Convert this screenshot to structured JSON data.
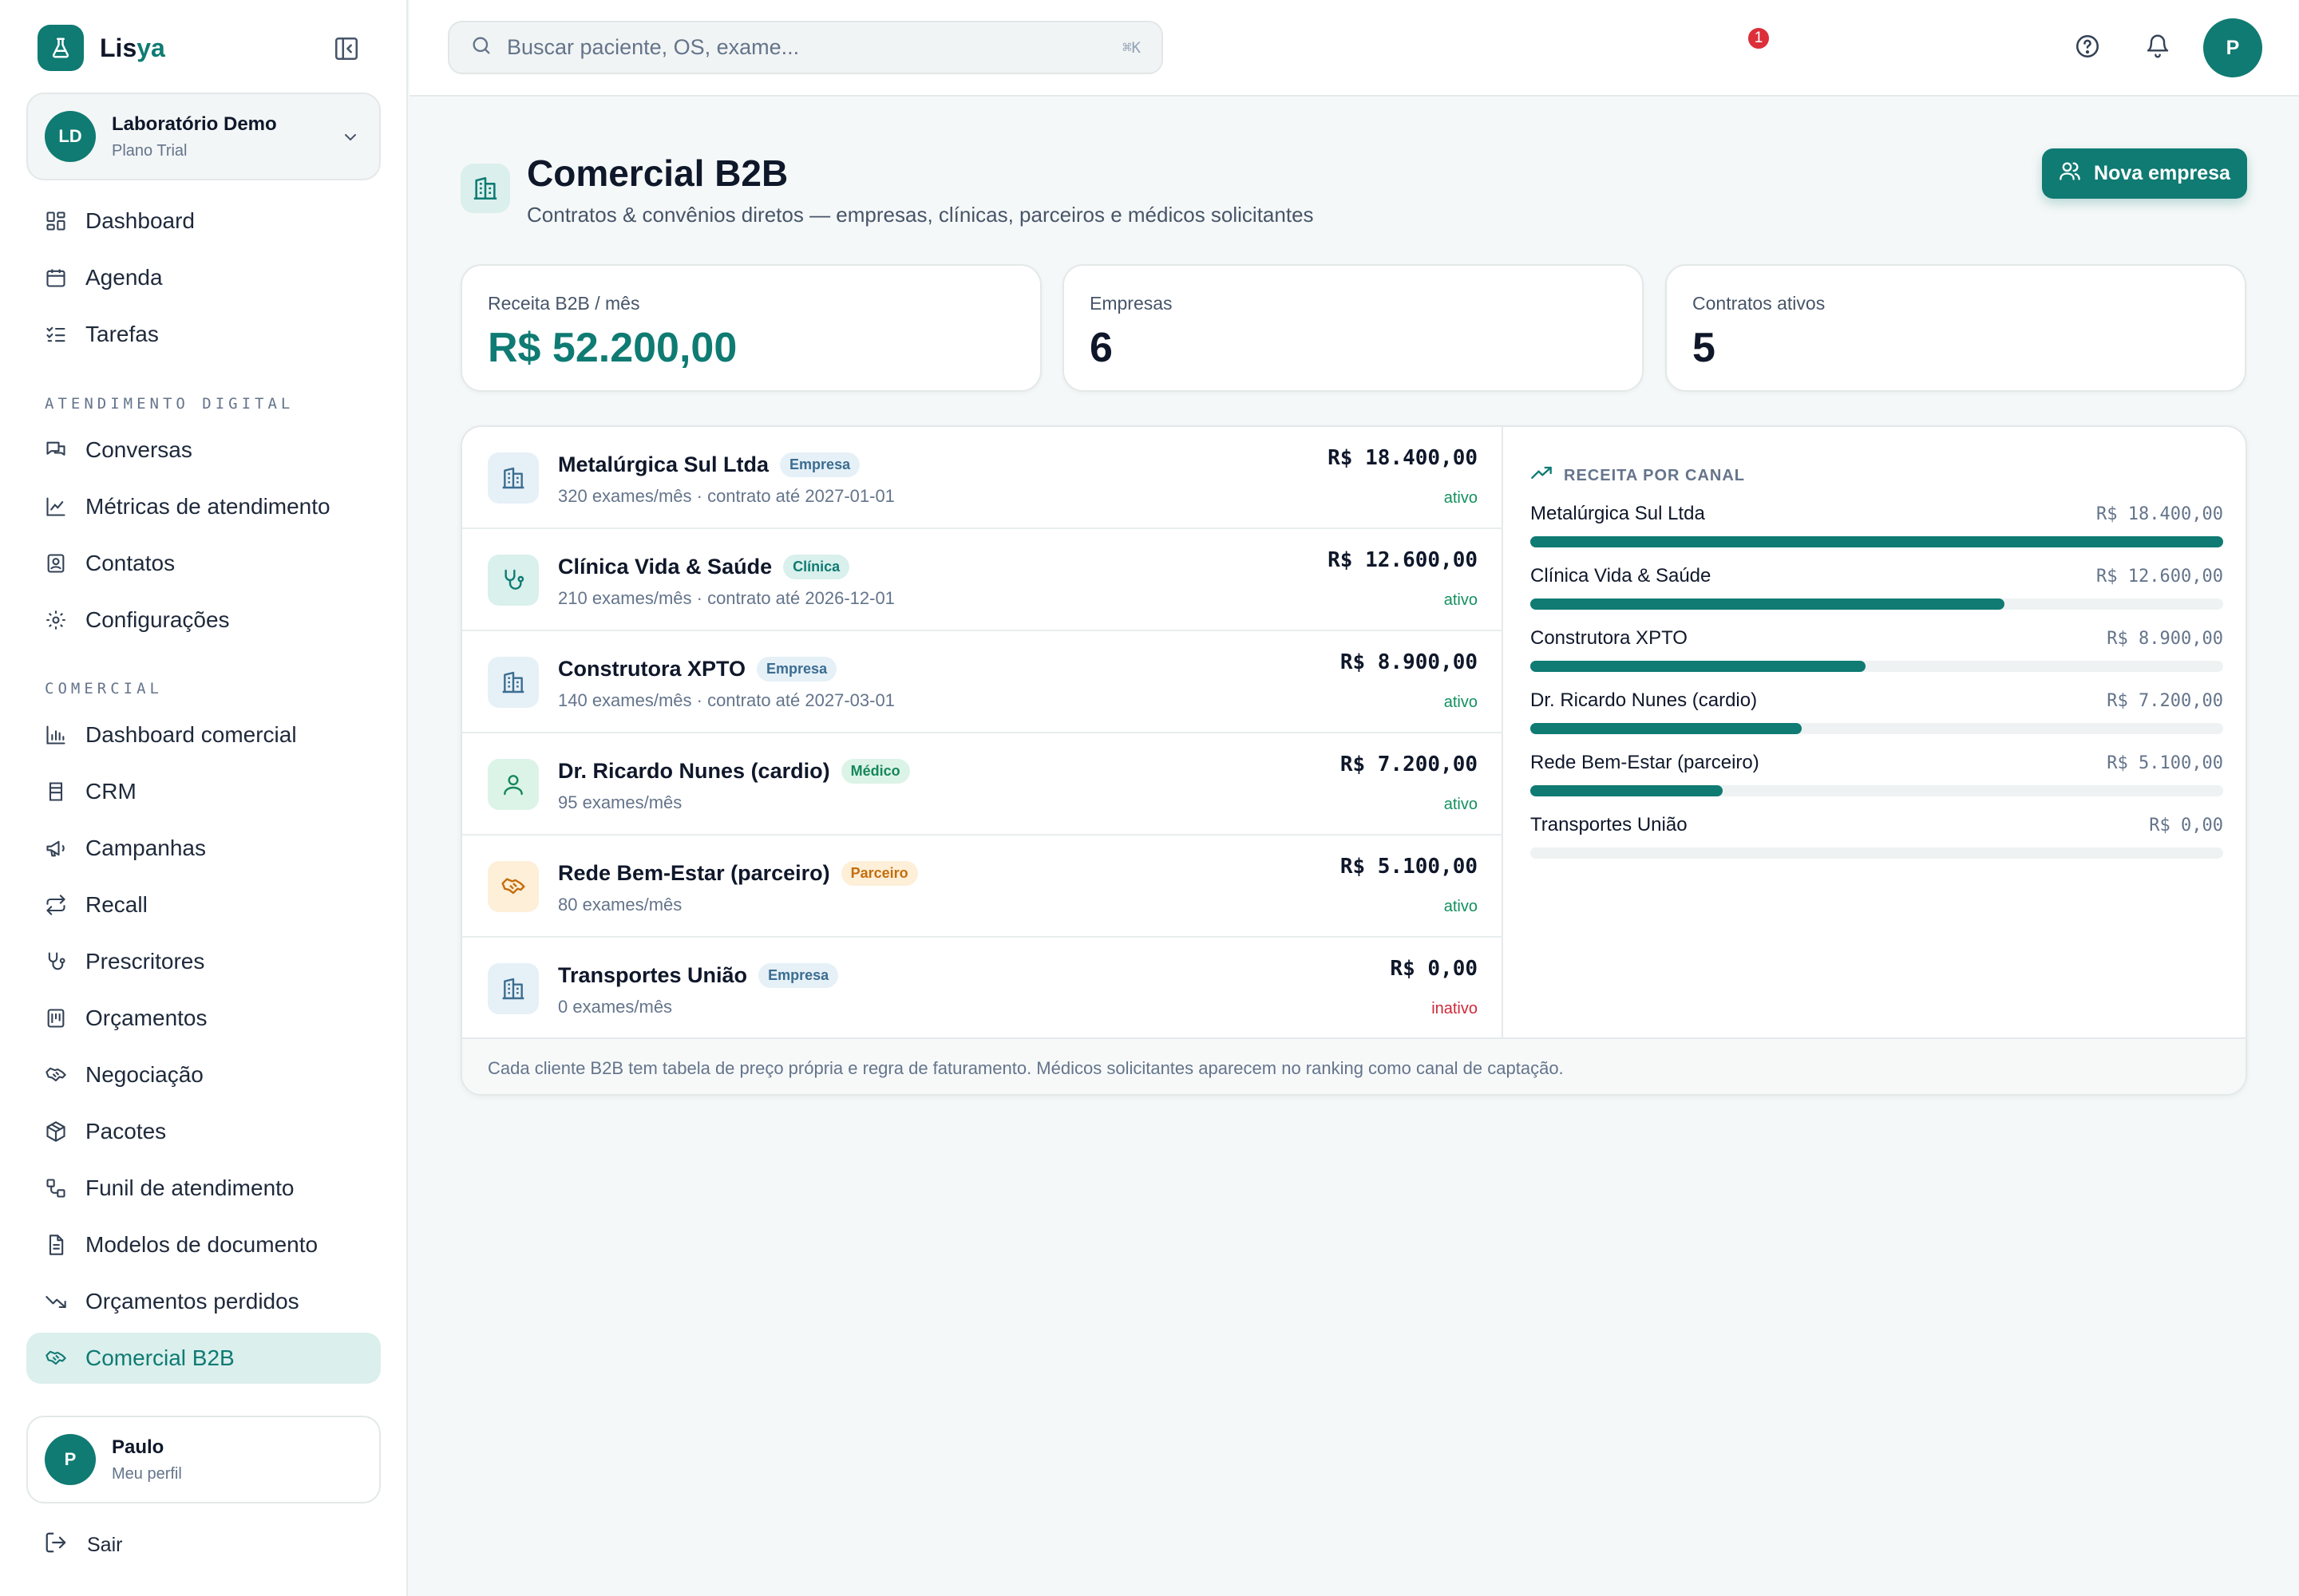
{
  "brand": {
    "name_prefix": "Lis",
    "name_accent": "ya"
  },
  "org": {
    "initials": "LD",
    "name": "Laboratório Demo",
    "plan": "Plano Trial"
  },
  "nav": {
    "top": [
      {
        "label": "Dashboard",
        "icon": "dashboard-icon"
      },
      {
        "label": "Agenda",
        "icon": "calendar-icon"
      },
      {
        "label": "Tarefas",
        "icon": "checklist-icon"
      }
    ],
    "section_digital": "ATENDIMENTO DIGITAL",
    "digital": [
      {
        "label": "Conversas",
        "icon": "chat-icon"
      },
      {
        "label": "Métricas de atendimento",
        "icon": "line-chart-icon"
      },
      {
        "label": "Contatos",
        "icon": "contact-icon"
      },
      {
        "label": "Configurações",
        "icon": "gear-icon"
      }
    ],
    "section_comercial": "COMERCIAL",
    "comercial": [
      {
        "label": "Dashboard comercial",
        "icon": "bar-chart-icon"
      },
      {
        "label": "CRM",
        "icon": "crm-icon"
      },
      {
        "label": "Campanhas",
        "icon": "megaphone-icon"
      },
      {
        "label": "Recall",
        "icon": "repeat-icon"
      },
      {
        "label": "Prescritores",
        "icon": "stethoscope-icon"
      },
      {
        "label": "Orçamentos",
        "icon": "calculator-icon"
      },
      {
        "label": "Negociação",
        "icon": "handshake-icon"
      },
      {
        "label": "Pacotes",
        "icon": "package-icon"
      },
      {
        "label": "Funil de atendimento",
        "icon": "workflow-icon"
      },
      {
        "label": "Modelos de documento",
        "icon": "document-icon"
      },
      {
        "label": "Orçamentos perdidos",
        "icon": "trending-down-icon"
      },
      {
        "label": "Comercial B2B",
        "icon": "handshake-icon",
        "active": true
      }
    ]
  },
  "user": {
    "initial": "P",
    "name": "Paulo",
    "subtitle": "Meu perfil"
  },
  "logout_label": "Sair",
  "search": {
    "placeholder": "Buscar paciente, OS, exame...",
    "shortcut": "⌘K"
  },
  "notifications": {
    "count": "1"
  },
  "top_avatar_initial": "P",
  "page": {
    "title": "Comercial B2B",
    "subtitle": "Contratos & convênios diretos — empresas, clínicas, parceiros e médicos solicitantes",
    "new_button": "Nova empresa"
  },
  "stats": [
    {
      "label": "Receita B2B / mês",
      "value": "R$ 52.200,00"
    },
    {
      "label": "Empresas",
      "value": "6"
    },
    {
      "label": "Contratos ativos",
      "value": "5"
    }
  ],
  "clients": [
    {
      "name": "Metalúrgica Sul Ltda",
      "tag": "Empresa",
      "meta": "320 exames/mês · contrato até 2027-01-01",
      "value": "R$ 18.400,00",
      "status": "ativo",
      "icon": "building-icon"
    },
    {
      "name": "Clínica Vida & Saúde",
      "tag": "Clínica",
      "meta": "210 exames/mês · contrato até 2026-12-01",
      "value": "R$ 12.600,00",
      "status": "ativo",
      "icon": "stethoscope-icon"
    },
    {
      "name": "Construtora XPTO",
      "tag": "Empresa",
      "meta": "140 exames/mês · contrato até 2027-03-01",
      "value": "R$ 8.900,00",
      "status": "ativo",
      "icon": "building-icon"
    },
    {
      "name": "Dr. Ricardo Nunes (cardio)",
      "tag": "Médico",
      "meta": "95 exames/mês",
      "value": "R$ 7.200,00",
      "status": "ativo",
      "icon": "user-icon"
    },
    {
      "name": "Rede Bem-Estar (parceiro)",
      "tag": "Parceiro",
      "meta": "80 exames/mês",
      "value": "R$ 5.100,00",
      "status": "ativo",
      "icon": "handshake-icon"
    },
    {
      "name": "Transportes União",
      "tag": "Empresa",
      "meta": "0 exames/mês",
      "value": "R$ 0,00",
      "status": "inativo",
      "icon": "building-icon"
    }
  ],
  "channel": {
    "title": "RECEITA POR CANAL",
    "items": [
      {
        "name": "Metalúrgica Sul Ltda",
        "amount": "R$ 18.400,00",
        "value": 18400
      },
      {
        "name": "Clínica Vida & Saúde",
        "amount": "R$ 12.600,00",
        "value": 12600
      },
      {
        "name": "Construtora XPTO",
        "amount": "R$ 8.900,00",
        "value": 8900
      },
      {
        "name": "Dr. Ricardo Nunes (cardio)",
        "amount": "R$ 7.200,00",
        "value": 7200
      },
      {
        "name": "Rede Bem-Estar (parceiro)",
        "amount": "R$ 5.100,00",
        "value": 5100
      },
      {
        "name": "Transportes União",
        "amount": "R$ 0,00",
        "value": 0
      }
    ]
  },
  "footer_note": "Cada cliente B2B tem tabela de preço própria e regra de faturamento. Médicos solicitantes aparecem no ranking como canal de captação.",
  "colors": {
    "accent": "#0f7b73",
    "active_bg": "#dbefed",
    "danger": "#d0293a",
    "success": "#13905f"
  }
}
